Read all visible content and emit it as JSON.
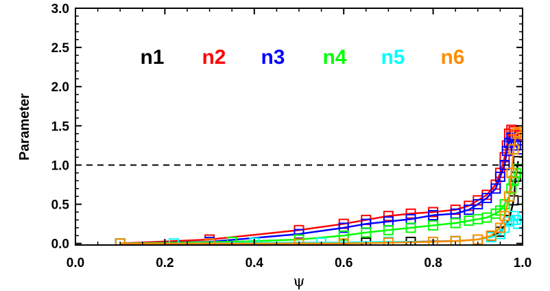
{
  "chart_data": {
    "type": "line",
    "title": "",
    "xlabel": "ψ",
    "ylabel": "Parameter",
    "xlim": [
      0.0,
      1.0
    ],
    "ylim": [
      -0.02,
      3.0
    ],
    "x_ticks": [
      "0.0",
      "0.2",
      "0.4",
      "0.6",
      "0.8",
      "1.0"
    ],
    "y_ticks": [
      "0.0",
      "0.5",
      "1.0",
      "1.5",
      "2.0",
      "2.5",
      "3.0"
    ],
    "x_tick_values": [
      0.0,
      0.2,
      0.4,
      0.6,
      0.8,
      1.0
    ],
    "y_tick_values": [
      0.0,
      0.5,
      1.0,
      1.5,
      2.0,
      2.5,
      3.0
    ],
    "reference_line": {
      "y": 1.0,
      "style": "dashed",
      "color": "#000000"
    },
    "grid": false,
    "legend_position": "top",
    "series": [
      {
        "name": "n1",
        "color": "#000000",
        "points": [
          [
            0.1,
            0.0
          ],
          [
            0.3,
            0.0
          ],
          [
            0.5,
            0.01
          ],
          [
            0.65,
            0.01
          ],
          [
            0.75,
            0.02
          ],
          [
            0.85,
            0.03
          ],
          [
            0.9,
            0.05
          ],
          [
            0.93,
            0.09
          ],
          [
            0.95,
            0.15
          ],
          [
            0.97,
            0.3
          ],
          [
            0.98,
            0.55
          ],
          [
            0.985,
            0.85
          ],
          [
            0.99,
            1.05
          ]
        ]
      },
      {
        "name": "n2",
        "color": "#ff0000",
        "points": [
          [
            0.1,
            0.0
          ],
          [
            0.3,
            0.05
          ],
          [
            0.5,
            0.17
          ],
          [
            0.6,
            0.25
          ],
          [
            0.65,
            0.3
          ],
          [
            0.7,
            0.35
          ],
          [
            0.75,
            0.38
          ],
          [
            0.8,
            0.4
          ],
          [
            0.85,
            0.43
          ],
          [
            0.88,
            0.48
          ],
          [
            0.9,
            0.55
          ],
          [
            0.92,
            0.62
          ],
          [
            0.94,
            0.75
          ],
          [
            0.95,
            0.9
          ],
          [
            0.96,
            1.1
          ],
          [
            0.965,
            1.25
          ],
          [
            0.97,
            1.4
          ],
          [
            0.975,
            1.45
          ],
          [
            0.98,
            1.43
          ],
          [
            0.985,
            1.4
          ],
          [
            0.99,
            1.38
          ]
        ]
      },
      {
        "name": "n3",
        "color": "#0000ff",
        "points": [
          [
            0.1,
            0.0
          ],
          [
            0.3,
            0.02
          ],
          [
            0.5,
            0.12
          ],
          [
            0.6,
            0.2
          ],
          [
            0.65,
            0.25
          ],
          [
            0.7,
            0.28
          ],
          [
            0.75,
            0.31
          ],
          [
            0.8,
            0.36
          ],
          [
            0.85,
            0.38
          ],
          [
            0.88,
            0.43
          ],
          [
            0.9,
            0.5
          ],
          [
            0.92,
            0.58
          ],
          [
            0.94,
            0.7
          ],
          [
            0.95,
            0.85
          ],
          [
            0.96,
            1.0
          ],
          [
            0.965,
            1.18
          ],
          [
            0.97,
            1.28
          ],
          [
            0.975,
            1.35
          ],
          [
            0.98,
            1.3
          ],
          [
            0.985,
            1.25
          ],
          [
            0.99,
            1.2
          ]
        ]
      },
      {
        "name": "n4",
        "color": "#00ff00",
        "points": [
          [
            0.1,
            0.0
          ],
          [
            0.35,
            0.02
          ],
          [
            0.5,
            0.05
          ],
          [
            0.6,
            0.1
          ],
          [
            0.65,
            0.14
          ],
          [
            0.7,
            0.17
          ],
          [
            0.75,
            0.2
          ],
          [
            0.8,
            0.23
          ],
          [
            0.85,
            0.26
          ],
          [
            0.88,
            0.29
          ],
          [
            0.9,
            0.31
          ],
          [
            0.92,
            0.33
          ],
          [
            0.94,
            0.38
          ],
          [
            0.95,
            0.42
          ],
          [
            0.96,
            0.5
          ],
          [
            0.97,
            0.6
          ],
          [
            0.975,
            0.7
          ],
          [
            0.98,
            0.8
          ],
          [
            0.985,
            0.9
          ],
          [
            0.99,
            0.95
          ]
        ]
      },
      {
        "name": "n5",
        "color": "#00ffff",
        "points": [
          [
            0.1,
            0.0
          ],
          [
            0.22,
            0.0
          ],
          [
            0.4,
            0.01
          ],
          [
            0.55,
            0.01
          ],
          [
            0.7,
            0.02
          ],
          [
            0.8,
            0.02
          ],
          [
            0.85,
            0.03
          ],
          [
            0.9,
            0.05
          ],
          [
            0.93,
            0.08
          ],
          [
            0.95,
            0.12
          ],
          [
            0.96,
            0.2
          ],
          [
            0.97,
            0.28
          ],
          [
            0.98,
            0.35
          ],
          [
            0.985,
            0.3
          ],
          [
            0.99,
            0.25
          ]
        ]
      },
      {
        "name": "n6",
        "color": "#ff8c00",
        "points": [
          [
            0.1,
            0.0
          ],
          [
            0.3,
            0.0
          ],
          [
            0.5,
            0.0
          ],
          [
            0.6,
            0.0
          ],
          [
            0.7,
            0.01
          ],
          [
            0.8,
            0.02
          ],
          [
            0.85,
            0.03
          ],
          [
            0.9,
            0.05
          ],
          [
            0.93,
            0.1
          ],
          [
            0.95,
            0.2
          ],
          [
            0.96,
            0.35
          ],
          [
            0.97,
            0.6
          ],
          [
            0.975,
            0.9
          ],
          [
            0.98,
            1.2
          ],
          [
            0.985,
            1.4
          ],
          [
            0.99,
            1.42
          ]
        ]
      }
    ]
  }
}
